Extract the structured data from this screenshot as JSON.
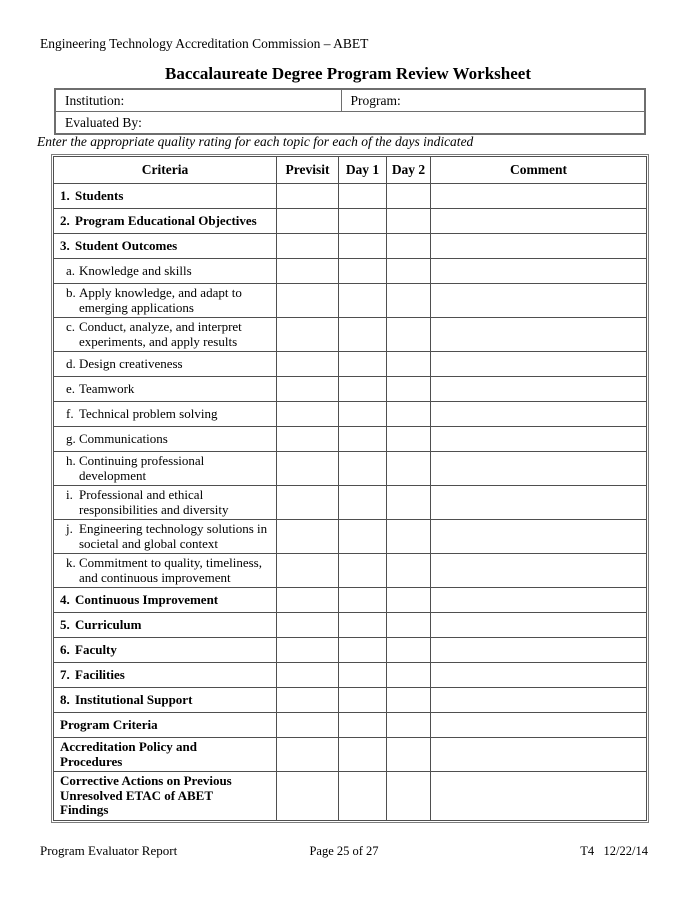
{
  "document": {
    "commission_line": "Engineering Technology Accreditation Commission – ABET",
    "title": "Baccalaureate Degree Program Review Worksheet",
    "instruction": "Enter the appropriate quality rating for each topic for each of the days indicated"
  },
  "info_table": {
    "institution_label": "Institution:",
    "program_label": "Program:",
    "evaluated_by_label": "Evaluated By:"
  },
  "main_table": {
    "headers": [
      "Criteria",
      "Previsit",
      "Day 1",
      "Day 2",
      "Comment"
    ],
    "rows": [
      {
        "prefix": "1.",
        "text": "Students",
        "style": "num"
      },
      {
        "prefix": "2.",
        "text": "Program Educational Objectives",
        "style": "num"
      },
      {
        "prefix": "3.",
        "text": "Student Outcomes",
        "style": "num"
      },
      {
        "prefix": "a.",
        "text": "Knowledge and skills",
        "style": "sub"
      },
      {
        "prefix": "b.",
        "text": "Apply knowledge, and adapt to\nemerging applications",
        "style": "sub"
      },
      {
        "prefix": "c.",
        "text": "Conduct, analyze, and interpret\nexperiments, and apply results",
        "style": "sub"
      },
      {
        "prefix": "d.",
        "text": "Design creativeness",
        "style": "sub"
      },
      {
        "prefix": "e.",
        "text": "Teamwork",
        "style": "sub"
      },
      {
        "prefix": "f.",
        "text": "Technical problem solving",
        "style": "sub"
      },
      {
        "prefix": "g.",
        "text": "Communications",
        "style": "sub"
      },
      {
        "prefix": "h.",
        "text": "Continuing professional development",
        "style": "sub"
      },
      {
        "prefix": "i.",
        "text": "Professional and ethical\nresponsibilities and diversity",
        "style": "sub"
      },
      {
        "prefix": "j.",
        "text": "Engineering technology solutions in\nsocietal and global context",
        "style": "sub"
      },
      {
        "prefix": "k.",
        "text": "Commitment to quality, timeliness,\nand continuous improvement",
        "style": "sub"
      },
      {
        "prefix": "4.",
        "text": "Continuous Improvement",
        "style": "num"
      },
      {
        "prefix": "5.",
        "text": "Curriculum",
        "style": "num"
      },
      {
        "prefix": "6.",
        "text": "Faculty",
        "style": "num"
      },
      {
        "prefix": "7.",
        "text": "Facilities",
        "style": "num"
      },
      {
        "prefix": "8.",
        "text": "Institutional Support",
        "style": "num"
      },
      {
        "prefix": "",
        "text": "Program Criteria",
        "style": "num"
      },
      {
        "prefix": "",
        "text": "Accreditation Policy and\nProcedures",
        "style": "num"
      },
      {
        "prefix": "",
        "text": "Corrective Actions on Previous\nUnresolved ETAC of ABET\nFindings",
        "style": "num"
      }
    ]
  },
  "footer": {
    "left": "Program Evaluator Report",
    "center": "Page 25 of 27",
    "right": "T4   12/22/14"
  }
}
